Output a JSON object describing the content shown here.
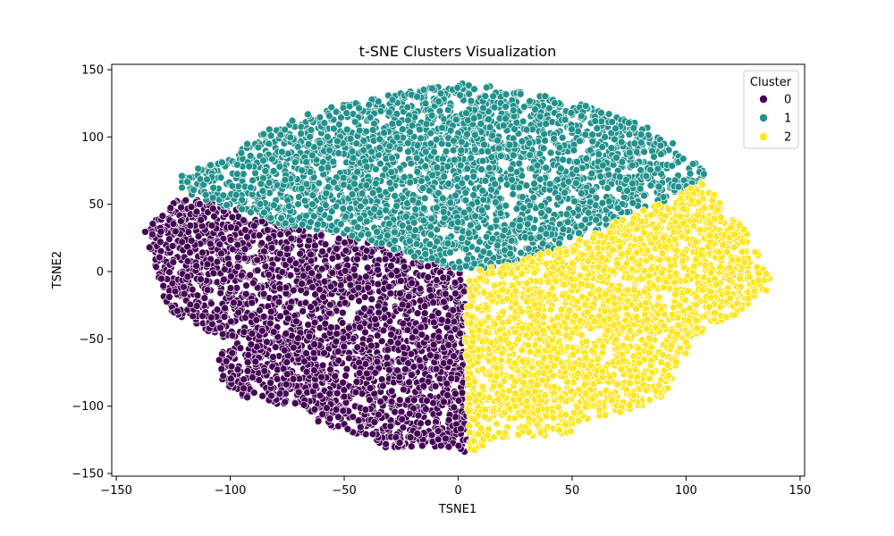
{
  "chart_data": {
    "type": "scatter",
    "title": "t-SNE Clusters Visualization",
    "xlabel": "TSNE1",
    "ylabel": "TSNE2",
    "xlim": [
      -152,
      152
    ],
    "ylim": [
      -152,
      154
    ],
    "xticks": [
      -150,
      -100,
      -50,
      0,
      50,
      100,
      150
    ],
    "yticks": [
      -150,
      -100,
      -50,
      0,
      50,
      100,
      150
    ],
    "grid": false,
    "legend": {
      "title": "Cluster",
      "placement": "top-right",
      "entries": [
        "0",
        "1",
        "2"
      ]
    },
    "colors": [
      "#440154",
      "#21918c",
      "#fde725"
    ],
    "marker_edge_color": "#ffffff",
    "series": [
      {
        "name": "0",
        "color": "#440154",
        "outline_points": [
          [
            -123,
            56
          ],
          [
            -138,
            30
          ],
          [
            -133,
            5
          ],
          [
            -128,
            -28
          ],
          [
            -110,
            -45
          ],
          [
            -95,
            -55
          ],
          [
            -105,
            -60
          ],
          [
            -105,
            -80
          ],
          [
            -95,
            -93
          ],
          [
            -75,
            -100
          ],
          [
            -60,
            -115
          ],
          [
            -45,
            -120
          ],
          [
            -30,
            -132
          ],
          [
            -15,
            -130
          ],
          [
            -5,
            -132
          ],
          [
            5,
            -135
          ],
          [
            4,
            -100
          ],
          [
            3,
            -40
          ],
          [
            3,
            0
          ],
          [
            -15,
            8
          ],
          [
            -35,
            20
          ],
          [
            -55,
            30
          ],
          [
            -75,
            33
          ],
          [
            -95,
            45
          ],
          [
            -110,
            52
          ]
        ]
      },
      {
        "name": "1",
        "color": "#21918c",
        "outline_points": [
          [
            -123,
            60
          ],
          [
            -122,
            72
          ],
          [
            -100,
            85
          ],
          [
            -85,
            105
          ],
          [
            -70,
            115
          ],
          [
            -50,
            125
          ],
          [
            -25,
            133
          ],
          [
            0,
            140
          ],
          [
            20,
            137
          ],
          [
            40,
            130
          ],
          [
            60,
            122
          ],
          [
            80,
            110
          ],
          [
            95,
            95
          ],
          [
            105,
            80
          ],
          [
            110,
            70
          ],
          [
            95,
            55
          ],
          [
            80,
            45
          ],
          [
            60,
            30
          ],
          [
            40,
            15
          ],
          [
            20,
            5
          ],
          [
            5,
            0
          ],
          [
            -15,
            8
          ],
          [
            -35,
            20
          ],
          [
            -55,
            30
          ],
          [
            -75,
            33
          ],
          [
            -95,
            45
          ],
          [
            -110,
            52
          ]
        ]
      },
      {
        "name": "2",
        "color": "#fde725",
        "outline_points": [
          [
            5,
            0
          ],
          [
            20,
            5
          ],
          [
            40,
            15
          ],
          [
            60,
            30
          ],
          [
            80,
            45
          ],
          [
            95,
            55
          ],
          [
            108,
            68
          ],
          [
            118,
            45
          ],
          [
            130,
            25
          ],
          [
            138,
            -10
          ],
          [
            125,
            -30
          ],
          [
            110,
            -40
          ],
          [
            100,
            -60
          ],
          [
            95,
            -80
          ],
          [
            90,
            -95
          ],
          [
            70,
            -105
          ],
          [
            55,
            -110
          ],
          [
            50,
            -120
          ],
          [
            30,
            -123
          ],
          [
            15,
            -125
          ],
          [
            5,
            -135
          ],
          [
            4,
            -100
          ],
          [
            3,
            -40
          ]
        ]
      }
    ]
  }
}
